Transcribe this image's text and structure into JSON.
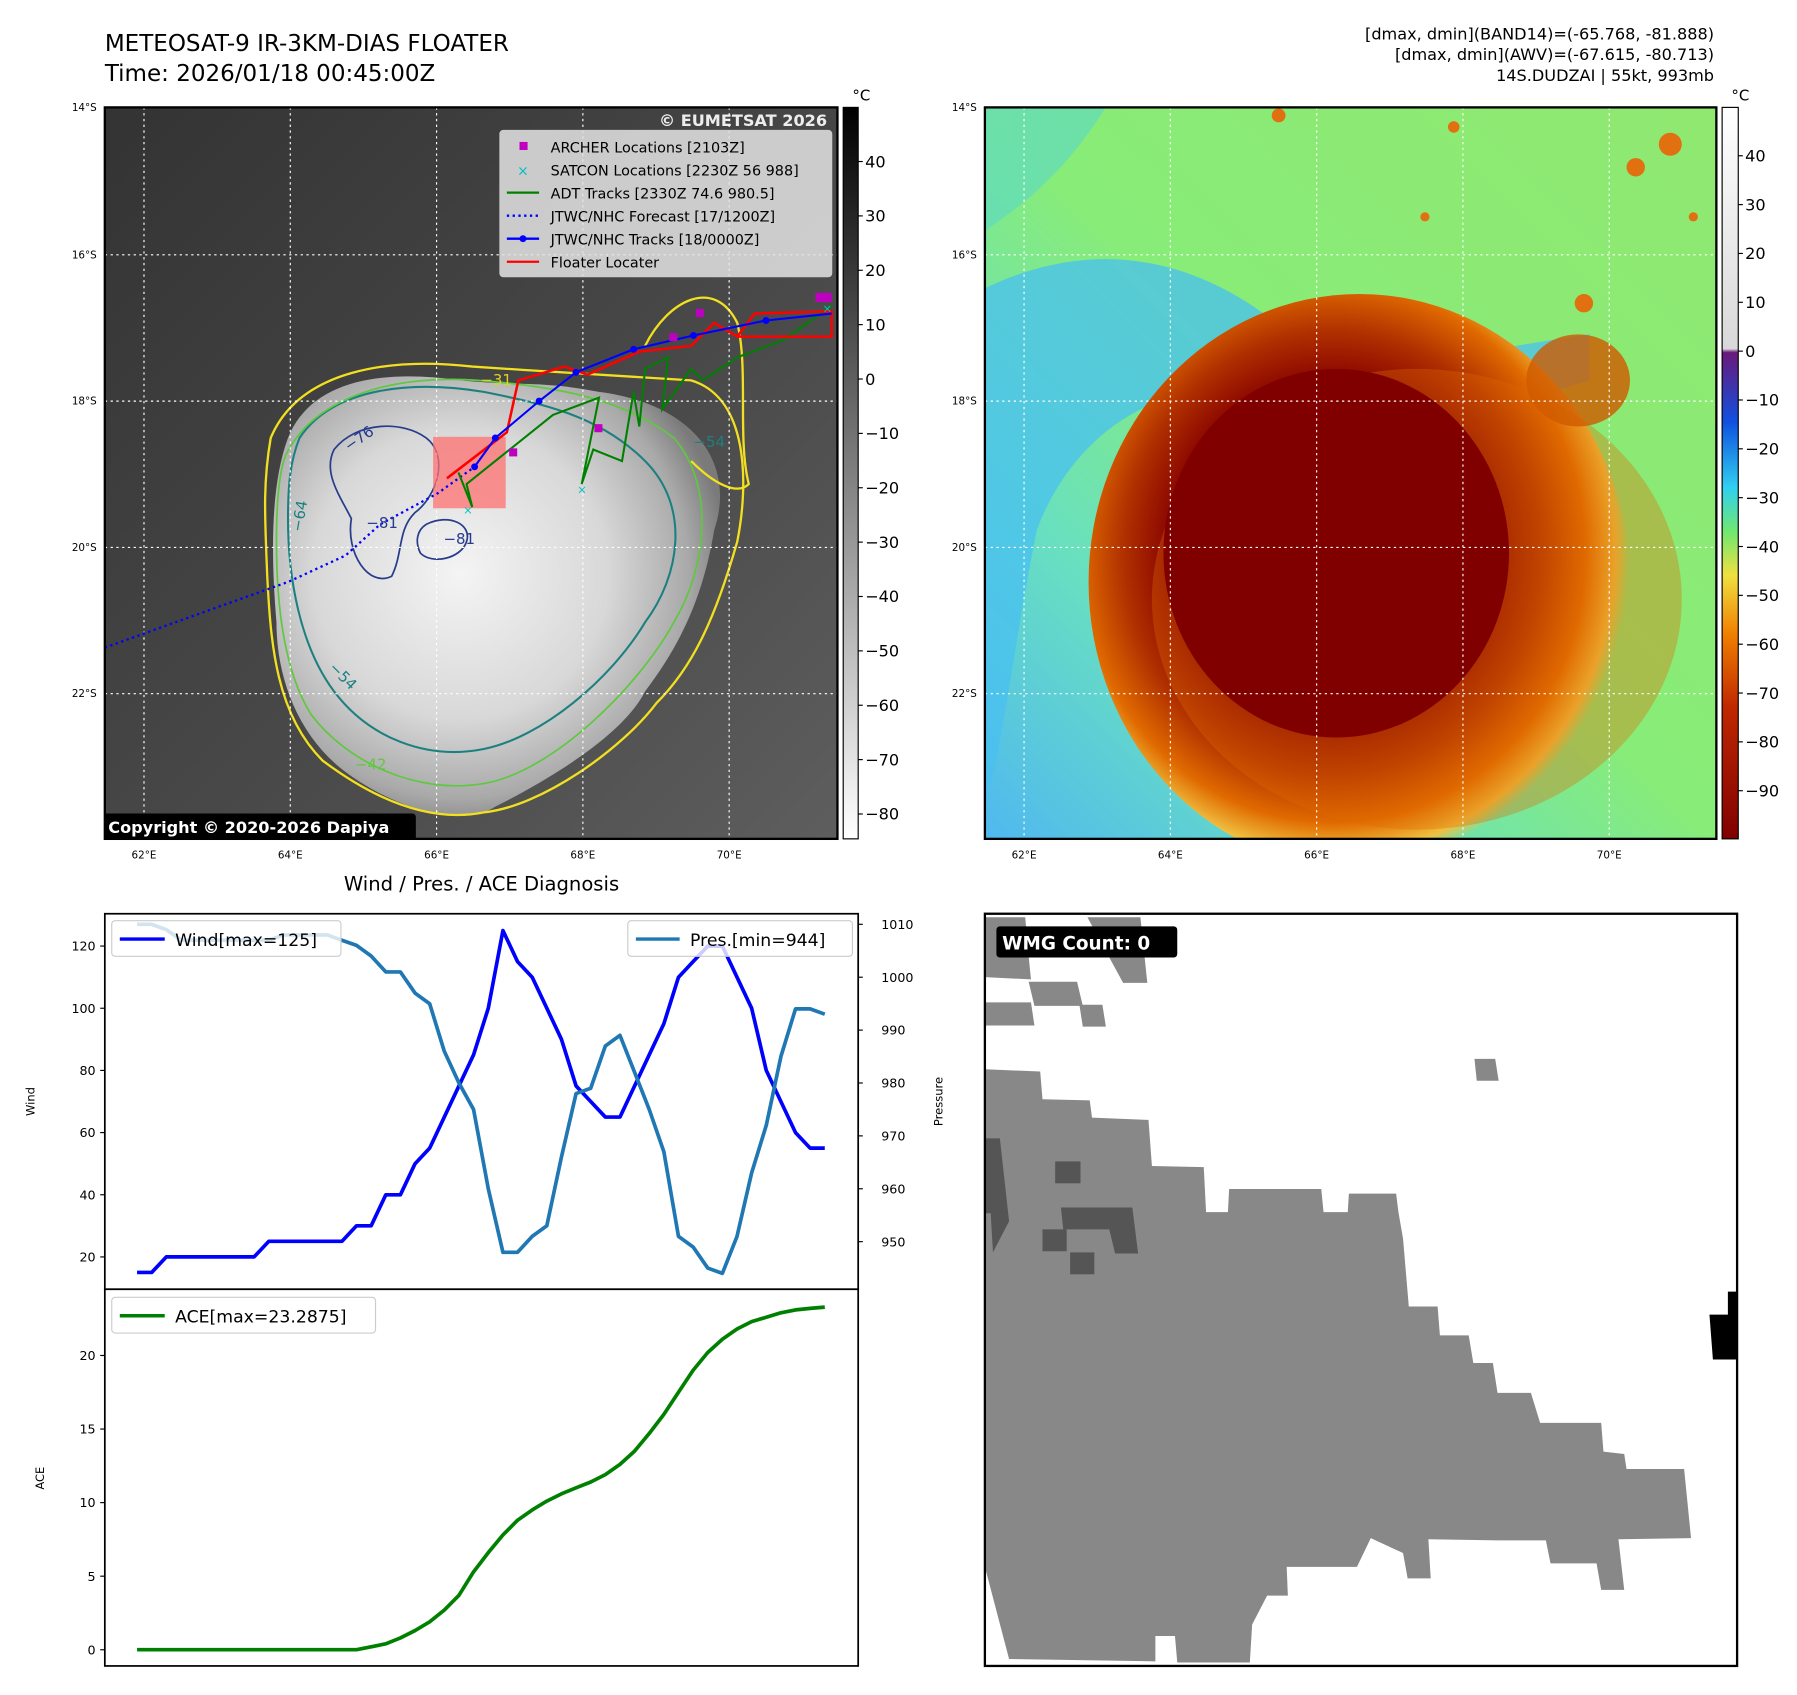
{
  "header": {
    "title": "METEOSAT-9 IR-3KM-DIAS FLOATER",
    "time": "Time: 2026/01/18 00:45:00Z",
    "stats_band14": "[dmax, dmin](BAND14)=(-65.768, -81.888)",
    "stats_awv": "[dmax, dmin](AWV)=(-67.615, -80.713)",
    "storm_info": "14S.DUDZAI | 55kt, 993mb"
  },
  "maps": {
    "lat_labels": [
      "14°S",
      "16°S",
      "18°S",
      "20°S",
      "22°S"
    ],
    "lon_labels": [
      "62°E",
      "64°E",
      "66°E",
      "68°E",
      "70°E"
    ],
    "colorbar_unit": "°C",
    "ir_colorbar_ticks": [
      "40",
      "30",
      "20",
      "10",
      "0",
      "−10",
      "−20",
      "−30",
      "−40",
      "−50",
      "−60",
      "−70",
      "−80"
    ],
    "awv_colorbar_ticks": [
      "40",
      "30",
      "20",
      "10",
      "0",
      "−10",
      "−20",
      "−30",
      "−40",
      "−50",
      "−60",
      "−70",
      "−80",
      "−90"
    ],
    "copyright": "Copyright © 2020-2026 Dapiya",
    "watermark": "© EUMETSAT 2026",
    "contour_labels": [
      "−31",
      "−76",
      "−81",
      "−81",
      "−64",
      "−54",
      "−54",
      "−42"
    ],
    "legend": [
      {
        "label": "ARCHER Locations [2103Z]",
        "color": "#c000c0"
      },
      {
        "label": "SATCON Locations [2230Z 56 988]",
        "color": "#00c0c0"
      },
      {
        "label": "ADT Tracks [2330Z 74.6 980.5]",
        "color": "#008000"
      },
      {
        "label": "JTWC/NHC Forecast [17/1200Z]",
        "color": "#0000ff"
      },
      {
        "label": "JTWC/NHC Tracks [18/0000Z]",
        "color": "#0000ff"
      },
      {
        "label": "Floater Locater",
        "color": "#ff0000"
      }
    ]
  },
  "wmg": {
    "label": "WMG Count: 0"
  },
  "chart_data": [
    {
      "type": "line",
      "title": "Wind / Pres. / ACE Diagnosis",
      "ylabel": "Wind",
      "y2label": "Pressure",
      "ylim": [
        9.6,
        130.4
      ],
      "y2lim": [
        941,
        1012
      ],
      "yticks": [
        20,
        40,
        60,
        80,
        100,
        120
      ],
      "y2ticks": [
        950,
        960,
        970,
        980,
        990,
        1000,
        1010
      ],
      "series": [
        {
          "name": "Wind[max=125]",
          "color": "#0000ff",
          "axis": "left",
          "values": [
            15,
            15,
            20,
            20,
            20,
            20,
            20,
            20,
            20,
            25,
            25,
            25,
            25,
            25,
            25,
            30,
            30,
            40,
            40,
            50,
            55,
            65,
            75,
            85,
            100,
            125,
            115,
            110,
            100,
            90,
            75,
            70,
            65,
            65,
            75,
            85,
            95,
            110,
            115,
            120,
            120,
            110,
            100,
            80,
            70,
            60,
            55,
            55
          ]
        },
        {
          "name": "Pres.[min=944]",
          "color": "#1f77b4",
          "axis": "right",
          "values": [
            1010,
            1010,
            1009,
            1007,
            1007,
            1007,
            1007,
            1007,
            1007,
            1007,
            1008,
            1008,
            1008,
            1008,
            1007,
            1006,
            1004,
            1001,
            1001,
            997,
            995,
            986,
            980,
            975,
            960,
            948,
            948,
            951,
            953,
            966,
            978,
            979,
            987,
            989,
            982,
            975,
            967,
            951,
            949,
            945,
            944,
            951,
            963,
            972,
            985,
            994,
            994,
            993
          ]
        }
      ]
    },
    {
      "type": "line",
      "ylabel": "ACE",
      "ylim": [
        -1.1,
        24.5
      ],
      "yticks": [
        0,
        5,
        10,
        15,
        20
      ],
      "series": [
        {
          "name": "ACE[max=23.2875]",
          "color": "#008000",
          "values": [
            0,
            0,
            0,
            0,
            0,
            0,
            0,
            0,
            0,
            0,
            0,
            0,
            0,
            0,
            0,
            0,
            0.2,
            0.4,
            0.8,
            1.3,
            1.9,
            2.7,
            3.7,
            5.3,
            6.6,
            7.8,
            8.8,
            9.5,
            10.1,
            10.6,
            11.0,
            11.4,
            11.9,
            12.6,
            13.5,
            14.7,
            16.0,
            17.5,
            19.0,
            20.2,
            21.1,
            21.8,
            22.3,
            22.6,
            22.9,
            23.1,
            23.2,
            23.2875
          ]
        }
      ]
    }
  ]
}
